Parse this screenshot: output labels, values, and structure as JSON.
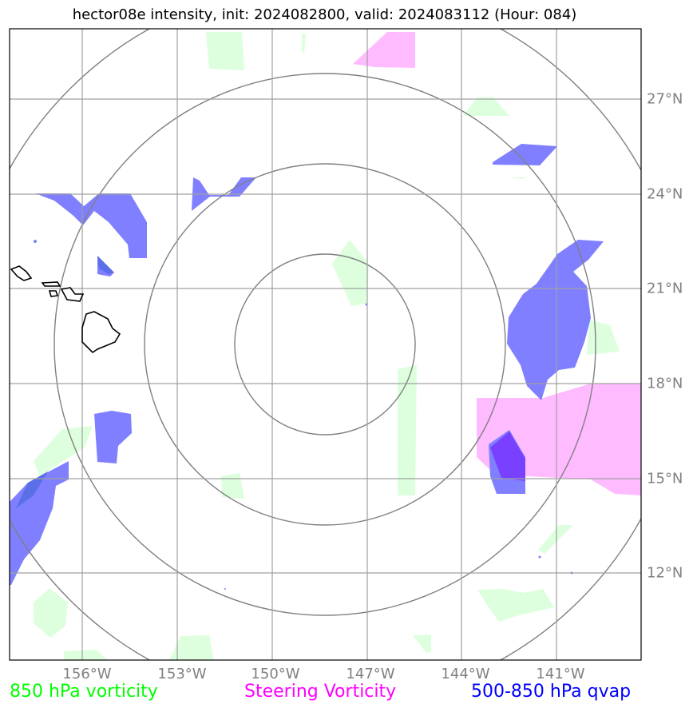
{
  "title": "hector08e intensity, init: 2024082800, valid: 2024083112 (Hour: 084)",
  "map": {
    "lon_labels": [
      "156°W",
      "153°W",
      "150°W",
      "147°W",
      "144°W",
      "141°W"
    ],
    "lat_labels": [
      "27°N",
      "24°N",
      "21°N",
      "18°N",
      "15°N",
      "12°N"
    ],
    "range_rings": 4,
    "layers": [
      {
        "name": "850 hPa vorticity",
        "color": "#00ff00",
        "fill": "#ddffdd"
      },
      {
        "name": "Steering Vorticity",
        "color": "#ff00ff",
        "fill": "#ffbbff"
      },
      {
        "name": "500-850 hPa qvap",
        "color": "#0000ff",
        "fill": "#7f7fff"
      }
    ]
  },
  "legend": {
    "vorticity_850": "850 hPa vorticity",
    "steering": "Steering Vorticity",
    "qvap": "500-850 hPa qvap"
  },
  "colors": {
    "grid": "#a0a0a0",
    "rings": "#808080",
    "vorticity_850": "#00ff00",
    "steering": "#ff00ff",
    "qvap": "#0000ff"
  }
}
